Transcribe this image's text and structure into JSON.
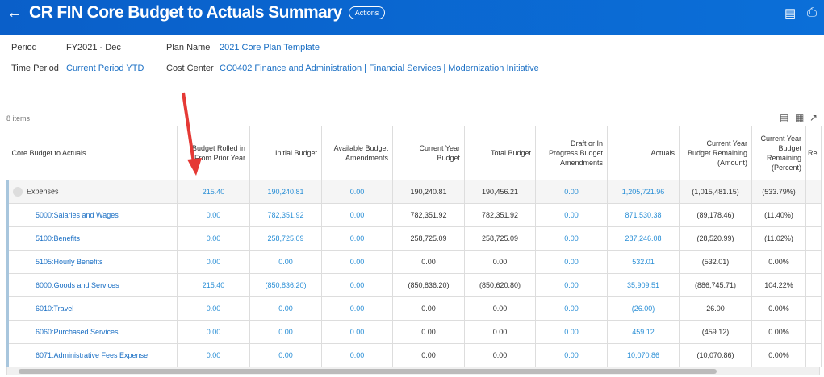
{
  "header": {
    "title": "CR FIN Core Budget to Actuals Summary",
    "actions": "Actions"
  },
  "filters": {
    "period_label": "Period",
    "period": "FY2021 - Dec",
    "plan_label": "Plan Name",
    "plan": "2021 Core Plan Template",
    "time_label": "Time Period",
    "time": "Current Period YTD",
    "cc_label": "Cost Center",
    "cc": "CC0402 Finance and Administration | Financial Services | Modernization Initiative"
  },
  "grid": {
    "count": "8 items",
    "columns": [
      "Core Budget to Actuals",
      "Budget Rolled in From Prior Year",
      "Initial Budget",
      "Available Budget Amendments",
      "Current Year Budget",
      "Total Budget",
      "Draft or In Progress Budget Amendments",
      "Actuals",
      "Current Year Budget Remaining (Amount)",
      "Current Year Budget Remaining (Percent)",
      "Re"
    ],
    "rows": [
      [
        "Expenses",
        "215.40",
        "190,240.81",
        "0.00",
        "190,240.81",
        "190,456.21",
        "0.00",
        "1,205,721.96",
        "(1,015,481.15)",
        "(533.79%)"
      ],
      [
        "5000:Salaries and Wages",
        "0.00",
        "782,351.92",
        "0.00",
        "782,351.92",
        "782,351.92",
        "0.00",
        "871,530.38",
        "(89,178.46)",
        "(11.40%)"
      ],
      [
        "5100:Benefits",
        "0.00",
        "258,725.09",
        "0.00",
        "258,725.09",
        "258,725.09",
        "0.00",
        "287,246.08",
        "(28,520.99)",
        "(11.02%)"
      ],
      [
        "5105:Hourly Benefits",
        "0.00",
        "0.00",
        "0.00",
        "0.00",
        "0.00",
        "0.00",
        "532.01",
        "(532.01)",
        "0.00%"
      ],
      [
        "6000:Goods and Services",
        "215.40",
        "(850,836.20)",
        "0.00",
        "(850,836.20)",
        "(850,620.80)",
        "0.00",
        "35,909.51",
        "(886,745.71)",
        "104.22%"
      ],
      [
        "6010:Travel",
        "0.00",
        "0.00",
        "0.00",
        "0.00",
        "0.00",
        "0.00",
        "(26.00)",
        "26.00",
        "0.00%"
      ],
      [
        "6060:Purchased Services",
        "0.00",
        "0.00",
        "0.00",
        "0.00",
        "0.00",
        "0.00",
        "459.12",
        "(459.12)",
        "0.00%"
      ],
      [
        "6071:Administrative Fees Expense",
        "0.00",
        "0.00",
        "0.00",
        "0.00",
        "0.00",
        "0.00",
        "10,070.86",
        "(10,070.86)",
        "0.00%"
      ]
    ]
  }
}
